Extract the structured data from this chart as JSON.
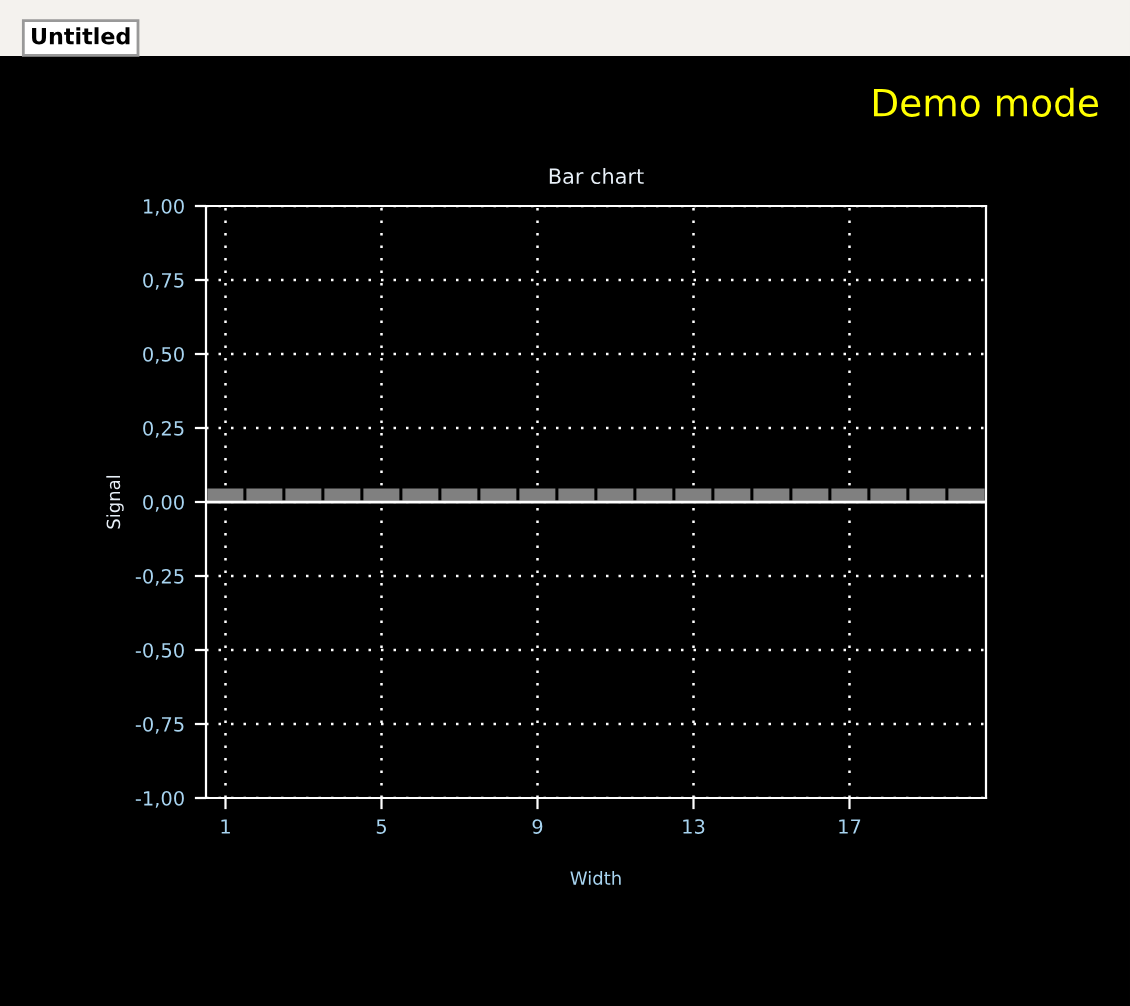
{
  "chart_data": {
    "type": "bar",
    "title": "Bar chart",
    "xlabel": "Width",
    "ylabel": "Signal",
    "annotations": [
      "Untitled",
      "Demo mode"
    ],
    "x": [
      1,
      2,
      3,
      4,
      5,
      6,
      7,
      8,
      9,
      10,
      11,
      12,
      13,
      14,
      15,
      16,
      17,
      18,
      19,
      20
    ],
    "series": [
      {
        "color": "#808080",
        "values": [
          0.05,
          0.05,
          0.05,
          0.05,
          0.05,
          0.05,
          0.05,
          0.05,
          0.05,
          0.05,
          0.05,
          0.05,
          0.05,
          0.05,
          0.05,
          0.05,
          0.05,
          0.05,
          0.05,
          0.05
        ]
      }
    ],
    "xlim": [
      0.5,
      20.5
    ],
    "xticks": [
      1,
      5,
      9,
      13,
      17
    ],
    "ylim": [
      -1,
      1
    ],
    "yticks": [
      {
        "value": -1,
        "label": "-1,00"
      },
      {
        "value": -0.75,
        "label": "-0,75"
      },
      {
        "value": -0.5,
        "label": "-0,50"
      },
      {
        "value": -0.25,
        "label": "-0,25"
      },
      {
        "value": 0,
        "label": "0,00"
      },
      {
        "value": 0.25,
        "label": "0,25"
      },
      {
        "value": 0.5,
        "label": "0,50"
      },
      {
        "value": 0.75,
        "label": "0,75"
      },
      {
        "value": 1,
        "label": "1,00"
      }
    ],
    "grid": true
  }
}
